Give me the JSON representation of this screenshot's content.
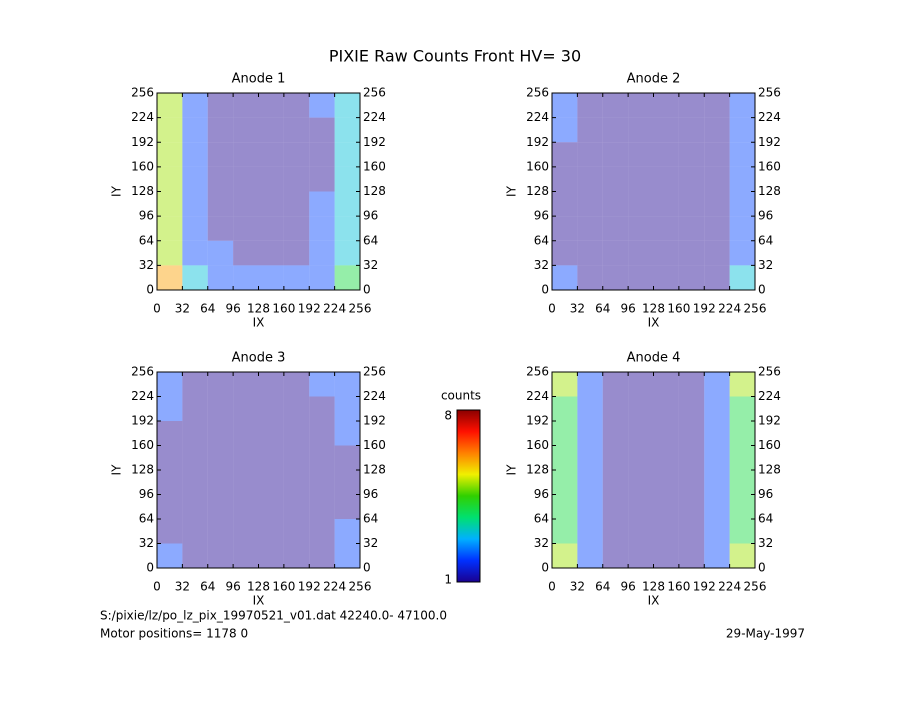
{
  "title": "PIXIE Raw Counts Front HV= 30",
  "colorbar": {
    "label": "counts",
    "min": 1,
    "max": 8,
    "colors": [
      "#1a0090",
      "#0030ff",
      "#00b0ff",
      "#00e070",
      "#30d000",
      "#f0f000",
      "#ff8000",
      "#ff1000",
      "#8a0000"
    ]
  },
  "footer": {
    "file": "S:/pixie/lz/po_lz_pix_19970521_v01.dat    42240.0- 47100.0",
    "motor": "Motor positions= 1178 0",
    "date": "29-May-1997"
  },
  "chart_data": [
    {
      "type": "heatmap",
      "title": "Anode 1",
      "xlabel": "IX",
      "ylabel": "IY",
      "xlim": [
        0,
        256
      ],
      "ylim": [
        0,
        256
      ],
      "xticks": [
        0,
        32,
        64,
        96,
        128,
        160,
        192,
        224,
        256
      ],
      "yticks": [
        0,
        32,
        64,
        96,
        128,
        160,
        192,
        224,
        256
      ],
      "values": [
        [
          5,
          2,
          1,
          1,
          1,
          1,
          2,
          3
        ],
        [
          5,
          2,
          1,
          1,
          1,
          1,
          1,
          3
        ],
        [
          5,
          2,
          1,
          1,
          1,
          1,
          1,
          3
        ],
        [
          5,
          2,
          1,
          1,
          1,
          1,
          1,
          3
        ],
        [
          5,
          2,
          1,
          1,
          1,
          1,
          2,
          3
        ],
        [
          5,
          2,
          1,
          1,
          1,
          1,
          2,
          3
        ],
        [
          5,
          2,
          2,
          1,
          1,
          1,
          2,
          3
        ],
        [
          6,
          3,
          2,
          2,
          2,
          2,
          2,
          4
        ]
      ]
    },
    {
      "type": "heatmap",
      "title": "Anode 2",
      "xlabel": "IX",
      "ylabel": "IY",
      "xlim": [
        0,
        256
      ],
      "ylim": [
        0,
        256
      ],
      "xticks": [
        0,
        32,
        64,
        96,
        128,
        160,
        192,
        224,
        256
      ],
      "yticks": [
        0,
        32,
        64,
        96,
        128,
        160,
        192,
        224,
        256
      ],
      "values": [
        [
          2,
          1,
          1,
          1,
          1,
          1,
          1,
          2
        ],
        [
          2,
          1,
          1,
          1,
          1,
          1,
          1,
          2
        ],
        [
          1,
          1,
          1,
          1,
          1,
          1,
          1,
          2
        ],
        [
          1,
          1,
          1,
          1,
          1,
          1,
          1,
          2
        ],
        [
          1,
          1,
          1,
          1,
          1,
          1,
          1,
          2
        ],
        [
          1,
          1,
          1,
          1,
          1,
          1,
          1,
          2
        ],
        [
          1,
          1,
          1,
          1,
          1,
          1,
          1,
          2
        ],
        [
          2,
          1,
          1,
          1,
          1,
          1,
          1,
          3
        ]
      ]
    },
    {
      "type": "heatmap",
      "title": "Anode 3",
      "xlabel": "IX",
      "ylabel": "IY",
      "xlim": [
        0,
        256
      ],
      "ylim": [
        0,
        256
      ],
      "xticks": [
        0,
        32,
        64,
        96,
        128,
        160,
        192,
        224,
        256
      ],
      "yticks": [
        0,
        32,
        64,
        96,
        128,
        160,
        192,
        224,
        256
      ],
      "values": [
        [
          2,
          1,
          1,
          1,
          1,
          1,
          2,
          2
        ],
        [
          2,
          1,
          1,
          1,
          1,
          1,
          1,
          2
        ],
        [
          1,
          1,
          1,
          1,
          1,
          1,
          1,
          2
        ],
        [
          1,
          1,
          1,
          1,
          1,
          1,
          1,
          1
        ],
        [
          1,
          1,
          1,
          1,
          1,
          1,
          1,
          1
        ],
        [
          1,
          1,
          1,
          1,
          1,
          1,
          1,
          1
        ],
        [
          1,
          1,
          1,
          1,
          1,
          1,
          1,
          2
        ],
        [
          2,
          1,
          1,
          1,
          1,
          1,
          1,
          2
        ]
      ]
    },
    {
      "type": "heatmap",
      "title": "Anode 4",
      "xlabel": "IX",
      "ylabel": "IY",
      "xlim": [
        0,
        256
      ],
      "ylim": [
        0,
        256
      ],
      "xticks": [
        0,
        32,
        64,
        96,
        128,
        160,
        192,
        224,
        256
      ],
      "yticks": [
        0,
        32,
        64,
        96,
        128,
        160,
        192,
        224,
        256
      ],
      "values": [
        [
          5,
          2,
          1,
          1,
          1,
          1,
          2,
          5
        ],
        [
          4,
          2,
          1,
          1,
          1,
          1,
          2,
          4
        ],
        [
          4,
          2,
          1,
          1,
          1,
          1,
          2,
          4
        ],
        [
          4,
          2,
          1,
          1,
          1,
          1,
          2,
          4
        ],
        [
          4,
          2,
          1,
          1,
          1,
          1,
          2,
          4
        ],
        [
          4,
          2,
          1,
          1,
          1,
          1,
          2,
          4
        ],
        [
          4,
          2,
          1,
          1,
          1,
          1,
          2,
          4
        ],
        [
          5,
          2,
          1,
          1,
          1,
          1,
          2,
          5
        ]
      ]
    }
  ]
}
